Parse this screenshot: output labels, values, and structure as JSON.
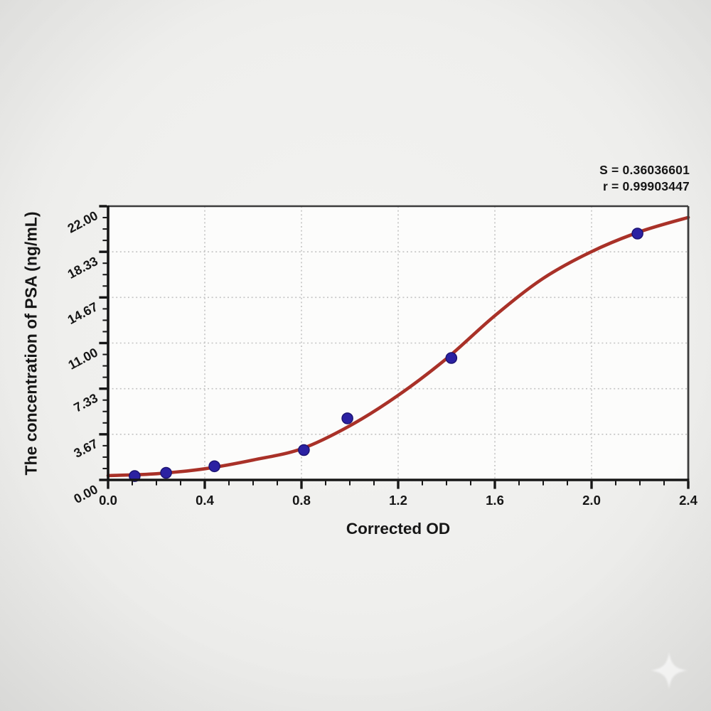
{
  "chart_data": {
    "type": "scatter",
    "title": "",
    "xlabel": "Corrected OD",
    "ylabel": "The concentration of PSA (ng/mL)",
    "xlim": [
      0,
      2.4
    ],
    "ylim": [
      0,
      22
    ],
    "x_major_ticks": [
      0,
      0.4,
      0.8,
      1.2,
      1.6,
      2.0,
      2.4
    ],
    "x_tick_labels": [
      "0.0",
      "0.4",
      "0.8",
      "1.2",
      "1.6",
      "2.0",
      "2.4"
    ],
    "x_minor_divisions": 4,
    "y_major_ticks": [
      0,
      3.667,
      7.333,
      11,
      14.667,
      18.333,
      22
    ],
    "y_tick_labels": [
      "0.00",
      "3.67",
      "7.33",
      "11.00",
      "14.67",
      "18.33",
      "22.00"
    ],
    "y_minor_divisions": 4,
    "grid": "dotted-at-major-ticks",
    "legend": null,
    "series": [
      {
        "name": "standard-points",
        "type": "scatter",
        "x": [
          0.11,
          0.24,
          0.44,
          0.81,
          0.99,
          1.42,
          2.19
        ],
        "y": [
          0.31,
          0.57,
          1.1,
          2.4,
          4.95,
          9.8,
          19.8
        ]
      },
      {
        "name": "4pl-fit-curve",
        "type": "line",
        "x": [
          0,
          0.2,
          0.4,
          0.6,
          0.8,
          1.0,
          1.2,
          1.4,
          1.6,
          1.8,
          2.0,
          2.2,
          2.4
        ],
        "y": [
          0.35,
          0.5,
          0.9,
          1.6,
          2.5,
          4.35,
          6.8,
          9.75,
          13.2,
          16.2,
          18.35,
          19.95,
          21.1
        ]
      }
    ],
    "annotations": [
      "S = 0.36036601",
      "r = 0.99903447"
    ],
    "colors": {
      "curve": "#a93128",
      "points": "#2b21a2",
      "points_edge": "#1b1270",
      "grid": "#c3c3c3",
      "axis": "#161616",
      "frame": "#3c3c3c",
      "text": "#161616",
      "plot_bg": "#fcfcfb",
      "page_bg": "#efefed"
    }
  }
}
